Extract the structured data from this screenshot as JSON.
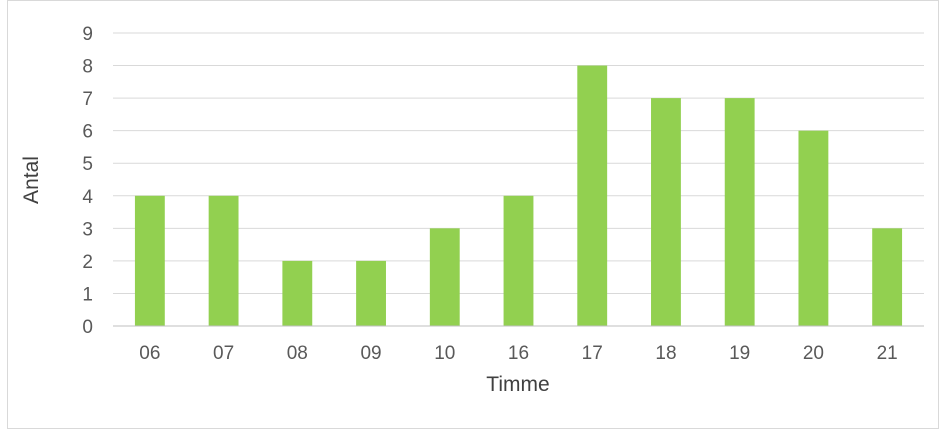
{
  "chart_data": {
    "type": "bar",
    "title": "",
    "xlabel": "Timme",
    "ylabel": "Antal",
    "categories": [
      "06",
      "07",
      "08",
      "09",
      "10",
      "16",
      "17",
      "18",
      "19",
      "20",
      "21"
    ],
    "values": [
      4,
      4,
      2,
      2,
      3,
      4,
      8,
      7,
      7,
      6,
      3
    ],
    "ylim": [
      0,
      9
    ],
    "yticks": [
      "0",
      "1",
      "2",
      "3",
      "4",
      "5",
      "6",
      "7",
      "8",
      "9"
    ],
    "grid": true,
    "legend": "none",
    "colors": {
      "bar": "#92d050",
      "grid": "#d9d9d9",
      "axis": "#bfbfbf"
    }
  }
}
